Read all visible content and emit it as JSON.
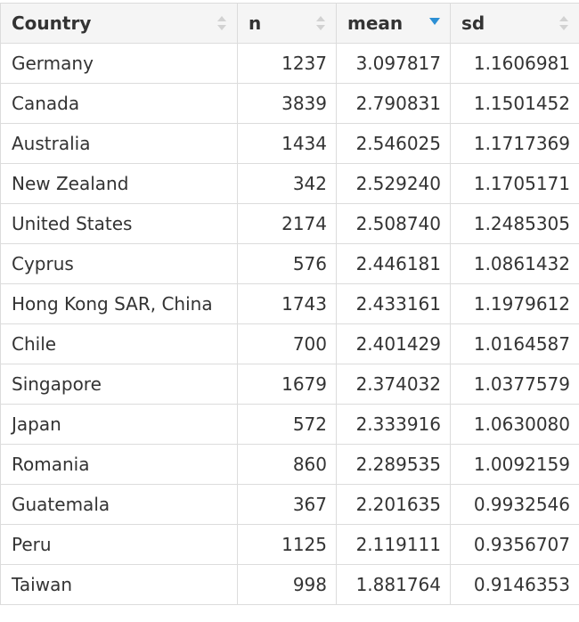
{
  "table": {
    "columns": [
      {
        "key": "country",
        "label": "Country",
        "sort": "none"
      },
      {
        "key": "n",
        "label": "n",
        "sort": "none"
      },
      {
        "key": "mean",
        "label": "mean",
        "sort": "descending"
      },
      {
        "key": "sd",
        "label": "sd",
        "sort": "none"
      }
    ],
    "rows": [
      {
        "country": "Germany",
        "n": "1237",
        "mean": "3.097817",
        "sd": "1.1606981"
      },
      {
        "country": "Canada",
        "n": "3839",
        "mean": "2.790831",
        "sd": "1.1501452"
      },
      {
        "country": "Australia",
        "n": "1434",
        "mean": "2.546025",
        "sd": "1.1717369"
      },
      {
        "country": "New Zealand",
        "n": "342",
        "mean": "2.529240",
        "sd": "1.1705171"
      },
      {
        "country": "United States",
        "n": "2174",
        "mean": "2.508740",
        "sd": "1.2485305"
      },
      {
        "country": "Cyprus",
        "n": "576",
        "mean": "2.446181",
        "sd": "1.0861432"
      },
      {
        "country": "Hong Kong SAR, China",
        "n": "1743",
        "mean": "2.433161",
        "sd": "1.1979612"
      },
      {
        "country": "Chile",
        "n": "700",
        "mean": "2.401429",
        "sd": "1.0164587"
      },
      {
        "country": "Singapore",
        "n": "1679",
        "mean": "2.374032",
        "sd": "1.0377579"
      },
      {
        "country": "Japan",
        "n": "572",
        "mean": "2.333916",
        "sd": "1.0630080"
      },
      {
        "country": "Romania",
        "n": "860",
        "mean": "2.289535",
        "sd": "1.0092159"
      },
      {
        "country": "Guatemala",
        "n": "367",
        "mean": "2.201635",
        "sd": "0.9932546"
      },
      {
        "country": "Peru",
        "n": "1125",
        "mean": "2.119111",
        "sd": "0.9356707"
      },
      {
        "country": "Taiwan",
        "n": "998",
        "mean": "1.881764",
        "sd": "0.9146353"
      }
    ]
  },
  "colors": {
    "header_bg": "#f5f5f5",
    "border": "#dcdcdc",
    "text": "#333333",
    "sort_inactive": "#d2d2d2",
    "sort_active": "#2c8fd4"
  }
}
